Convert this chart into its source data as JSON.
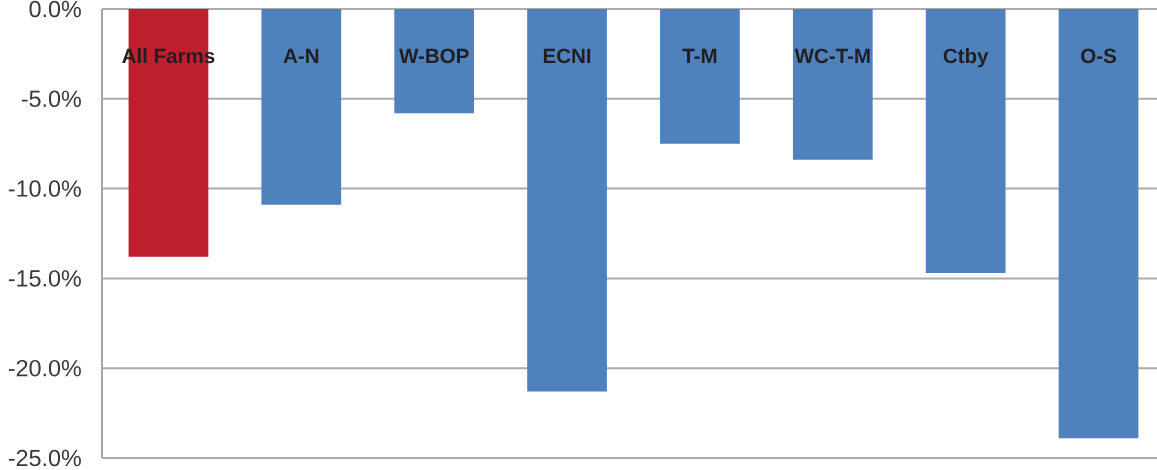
{
  "chart_data": {
    "type": "bar",
    "categories": [
      "All Farms",
      "A-N",
      "W-BOP",
      "ECNI",
      "T-M",
      "WC-T-M",
      "Ctby",
      "O-S"
    ],
    "values": [
      -13.8,
      -10.9,
      -5.8,
      -21.3,
      -7.5,
      -8.4,
      -14.7,
      -23.9
    ],
    "colors": [
      "#be1e2d",
      "#4f81bd",
      "#4f81bd",
      "#4f81bd",
      "#4f81bd",
      "#4f81bd",
      "#4f81bd",
      "#4f81bd"
    ],
    "ylim": [
      -25,
      0
    ],
    "yticks": [
      {
        "value": 0,
        "label": "0.0%"
      },
      {
        "value": -5,
        "label": "-5.0%"
      },
      {
        "value": -10,
        "label": "-10.0%"
      },
      {
        "value": -15,
        "label": "-15.0%"
      },
      {
        "value": -20,
        "label": "-20.0%"
      },
      {
        "value": -25,
        "label": "-25.0%"
      }
    ],
    "grid": "y"
  }
}
